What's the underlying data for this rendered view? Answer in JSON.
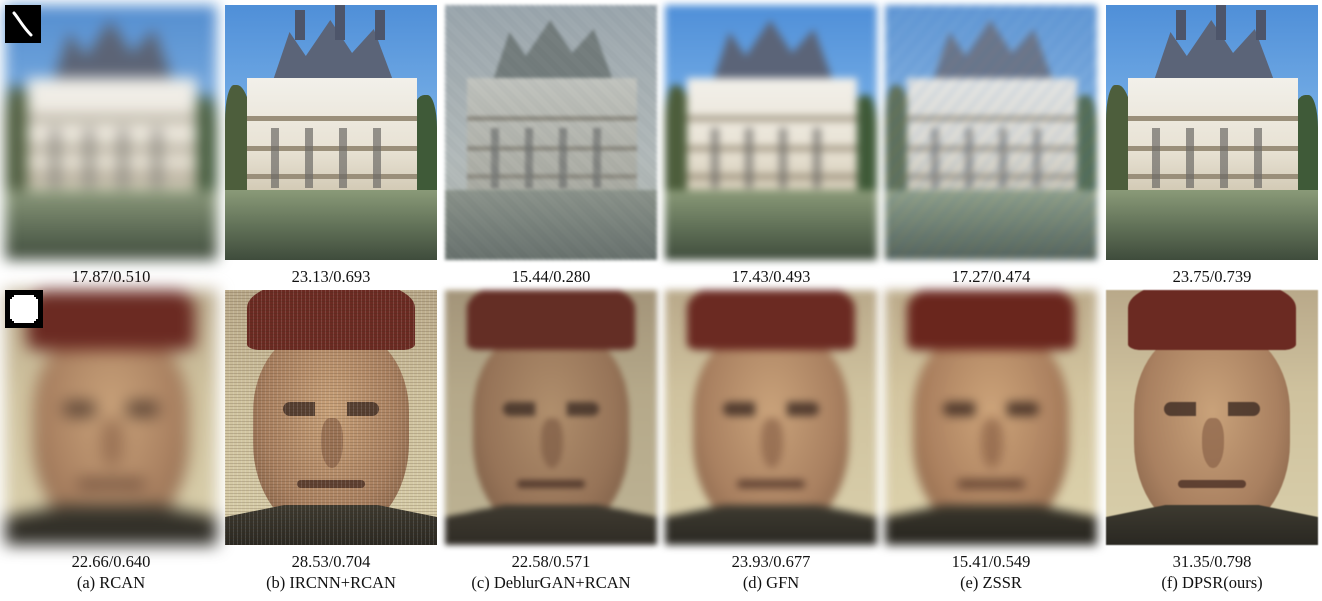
{
  "figure": {
    "columns": [
      {
        "method": "(a) RCAN",
        "castle_metric": "17.87/0.510",
        "face_metric": "22.66/0.640"
      },
      {
        "method": "(b) IRCNN+RCAN",
        "castle_metric": "23.13/0.693",
        "face_metric": "28.53/0.704"
      },
      {
        "method": "(c) DeblurGAN+RCAN",
        "castle_metric": "15.44/0.280",
        "face_metric": "22.58/0.571"
      },
      {
        "method": "(d) GFN",
        "castle_metric": "17.43/0.493",
        "face_metric": "23.93/0.677"
      },
      {
        "method": "(e) ZSSR",
        "castle_metric": "17.27/0.474",
        "face_metric": "15.41/0.549"
      },
      {
        "method": "(f) DPSR(ours)",
        "castle_metric": "23.75/0.739",
        "face_metric": "31.35/0.798"
      }
    ]
  }
}
